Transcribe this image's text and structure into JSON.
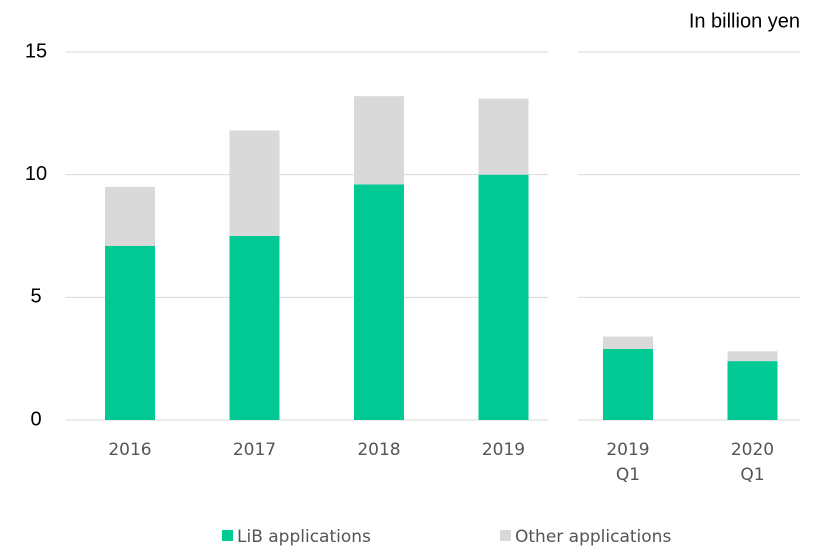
{
  "chart_data": {
    "type": "stacked_bar",
    "unit_label": "In billion yen",
    "categories": [
      "2016",
      "2017",
      "2018",
      "2019",
      "2019\nQ1",
      "2020\nQ1"
    ],
    "series": [
      {
        "name": "LiB applications",
        "color": "#00c994",
        "values": [
          7.1,
          7.5,
          9.6,
          10.0,
          2.9,
          2.4
        ]
      },
      {
        "name": "Other applications",
        "color": "#d9d9d9",
        "values": [
          2.4,
          4.3,
          3.6,
          3.1,
          0.5,
          0.4
        ]
      }
    ],
    "ylim": [
      0,
      15
    ],
    "yticks": [
      0,
      5,
      10,
      15
    ],
    "grid": true,
    "legend": "bottom"
  }
}
